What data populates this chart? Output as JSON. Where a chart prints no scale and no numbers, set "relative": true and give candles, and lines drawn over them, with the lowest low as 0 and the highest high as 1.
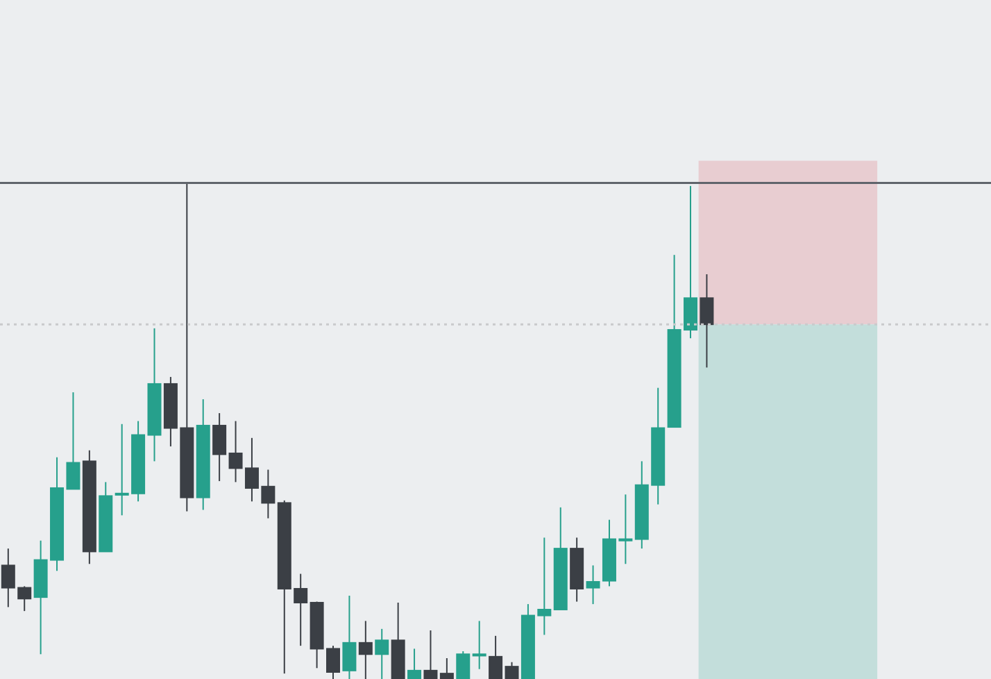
{
  "chart_data": {
    "type": "candlestick",
    "relative": true,
    "legend": false,
    "grid": false,
    "categories": [
      null,
      null,
      null,
      null,
      null,
      null,
      null,
      null,
      null,
      null,
      null,
      null,
      null,
      null,
      null,
      null,
      null,
      null,
      null,
      null,
      null,
      null,
      null,
      null,
      null,
      null,
      null,
      null,
      null,
      null,
      null,
      null,
      null,
      null,
      null,
      null,
      null,
      null,
      null,
      null,
      null,
      null,
      null,
      null,
      null,
      null,
      null,
      null,
      null,
      null,
      null,
      null,
      null,
      null,
      null,
      null,
      null,
      null,
      null,
      null,
      null
    ],
    "ohlc": [
      [
        0.229,
        0.263,
        0.145,
        0.184
      ],
      [
        0.184,
        0.187,
        0.137,
        0.162
      ],
      [
        0.165,
        0.279,
        0.05,
        0.24
      ],
      [
        0.24,
        0.447,
        0.218,
        0.385
      ],
      [
        0.383,
        0.578,
        0.383,
        0.436
      ],
      [
        0.439,
        0.461,
        0.232,
        0.257
      ],
      [
        0.257,
        0.397,
        0.257,
        0.369
      ],
      [
        0.372,
        0.514,
        0.33,
        0.374
      ],
      [
        0.374,
        0.52,
        0.358,
        0.492
      ],
      [
        0.492,
        0.707,
        0.439,
        0.595
      ],
      [
        0.595,
        0.609,
        0.469,
        0.506
      ],
      [
        0.506,
        1,
        0.338,
        0.366
      ],
      [
        0.366,
        0.564,
        0.341,
        0.511
      ],
      [
        0.511,
        0.536,
        0.399,
        0.453
      ],
      [
        0.455,
        0.52,
        0.397,
        0.425
      ],
      [
        0.425,
        0.486,
        0.358,
        0.385
      ],
      [
        0.388,
        0.422,
        0.324,
        0.355
      ],
      [
        0.355,
        0.36,
        0.011,
        0.182
      ],
      [
        0.182,
        0.212,
        0.067,
        0.154
      ],
      [
        0.154,
        0.156,
        0.022,
        0.061
      ],
      [
        0.061,
        0.067,
        0,
        0.014
      ],
      [
        0.017,
        0.168,
        0,
        0.073
      ],
      [
        0.073,
        0.117,
        0,
        0.05
      ],
      [
        0.05,
        0.101,
        0,
        0.078
      ],
      [
        0.078,
        0.154,
        0,
        0
      ],
      [
        0,
        0.061,
        0,
        0.017
      ],
      [
        0.017,
        0.098,
        0,
        0
      ],
      [
        0.011,
        0.042,
        0,
        0
      ],
      [
        0,
        0.056,
        0,
        0.05
      ],
      [
        0.047,
        0.117,
        0.02,
        0.05
      ],
      [
        0.045,
        0.087,
        0,
        0
      ],
      [
        0.025,
        0.034,
        0,
        0
      ],
      [
        0,
        0.151,
        0,
        0.128
      ],
      [
        0.128,
        0.285,
        0.089,
        0.14
      ],
      [
        0.14,
        0.346,
        0.14,
        0.263
      ],
      [
        0.263,
        0.285,
        0.156,
        0.182
      ],
      [
        0.184,
        0.229,
        0.151,
        0.196
      ],
      [
        0.198,
        0.321,
        0.187,
        0.282
      ],
      [
        0.279,
        0.372,
        0.232,
        0.282
      ],
      [
        0.282,
        0.439,
        0.263,
        0.391
      ],
      [
        0.391,
        0.587,
        0.352,
        0.506
      ],
      [
        0.508,
        0.855,
        0.508,
        0.704
      ],
      [
        0.704,
        0.994,
        0.687,
        0.768
      ],
      [
        0.768,
        0.816,
        0.628,
        0.715
      ],
      null,
      null,
      null,
      null,
      null,
      null,
      null,
      null,
      null,
      null,
      null,
      null,
      null,
      null,
      null,
      null,
      null
    ],
    "colors": [
      "#3b3f45",
      "#3b3f45",
      "#26a08c",
      "#26a08c",
      "#26a08c",
      "#3b3f45",
      "#26a08c",
      "#26a08c",
      "#26a08c",
      "#26a08c",
      "#3b3f45",
      "#3b3f45",
      "#26a08c",
      "#3b3f45",
      "#3b3f45",
      "#3b3f45",
      "#3b3f45",
      "#3b3f45",
      "#3b3f45",
      "#3b3f45",
      "#3b3f45",
      "#26a08c",
      "#3b3f45",
      "#26a08c",
      "#3b3f45",
      "#26a08c",
      "#3b3f45",
      "#3b3f45",
      "#26a08c",
      "#26a08c",
      "#3b3f45",
      "#3b3f45",
      "#26a08c",
      "#26a08c",
      "#26a08c",
      "#3b3f45",
      "#26a08c",
      "#26a08c",
      "#26a08c",
      "#26a08c",
      "#26a08c",
      "#26a08c",
      "#26a08c",
      "#3b3f45",
      null,
      null,
      null,
      null,
      null,
      null,
      null,
      null,
      null,
      null,
      null,
      null,
      null,
      null,
      null,
      null,
      null
    ],
    "ref_lines": [
      {
        "axis": "y",
        "value": 1,
        "color": "#60656c",
        "line_style": "solid"
      },
      {
        "axis": "y",
        "value": 0.715,
        "color": "#c9cacc",
        "line_style": "dotted"
      }
    ],
    "bands": [
      {
        "axis": "y",
        "from": 0.715,
        "to": 1.045,
        "color": "#e8cdd1"
      },
      {
        "axis": "y",
        "from": 0,
        "to": 0.715,
        "color": "#c3dedb"
      }
    ]
  }
}
